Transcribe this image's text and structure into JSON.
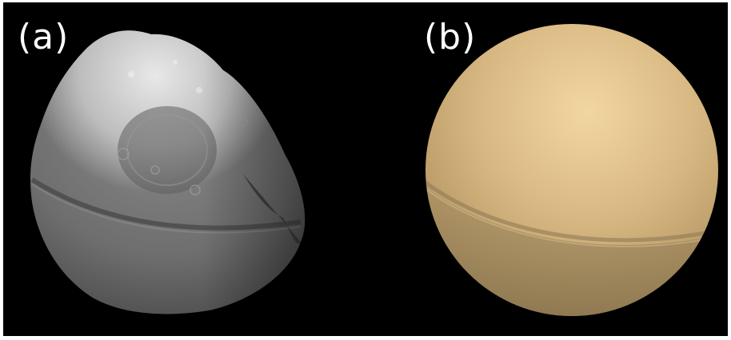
{
  "figure": {
    "background_color": "#000000",
    "panels": [
      {
        "label": "(a)",
        "content": "moon-photograph-icon",
        "colors": {
          "surface": "#7d7d7d",
          "bright_cap": "#d8d8d8",
          "shadow": "#2a2a2a"
        }
      },
      {
        "label": "(b)",
        "content": "shaded-sphere-model-icon",
        "colors": {
          "highlight": "#f2d6a2",
          "body": "#c9aa74",
          "ridge": "#a38a5c",
          "lower": "#8f7a55"
        }
      }
    ]
  }
}
